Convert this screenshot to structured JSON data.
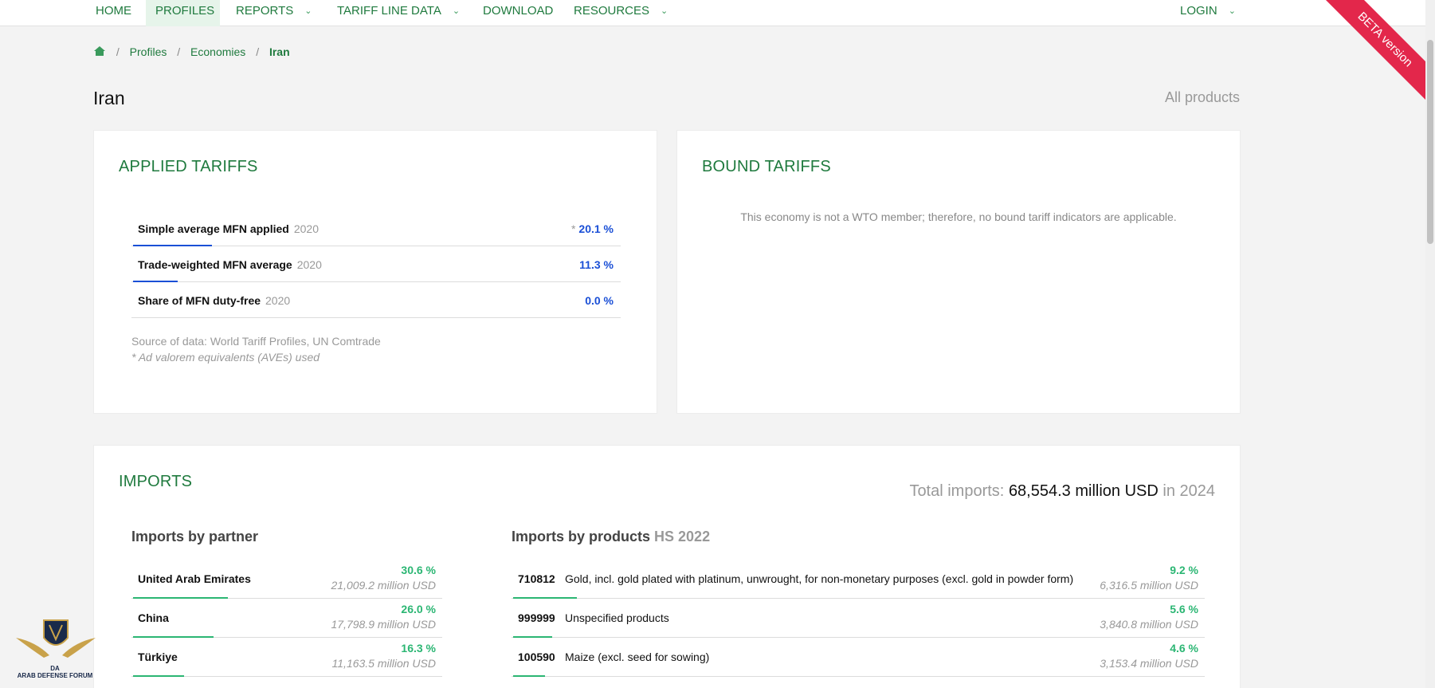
{
  "nav": {
    "home": "HOME",
    "profiles": "PROFILES",
    "reports": "REPORTS",
    "tariff_line_data": "TARIFF LINE DATA",
    "download": "DOWNLOAD",
    "resources": "RESOURCES",
    "login": "LOGIN"
  },
  "ribbon": "BETA version",
  "breadcrumb": {
    "profiles": "Profiles",
    "economies": "Economies",
    "current": "Iran"
  },
  "page_title": "Iran",
  "all_products": "All products",
  "applied": {
    "title": "APPLIED TARIFFS",
    "rows": [
      {
        "label": "Simple average MFN applied",
        "year": "2020",
        "asterisk": "*",
        "value": "20.1 %",
        "bar_fraction": 0.201
      },
      {
        "label": "Trade-weighted MFN average",
        "year": "2020",
        "asterisk": "",
        "value": "11.3 %",
        "bar_fraction": 0.113
      },
      {
        "label": "Share of MFN duty-free",
        "year": "2020",
        "asterisk": "",
        "value": "0.0 %",
        "bar_fraction": 0.0
      }
    ],
    "source": "Source of data: World Tariff Profiles, UN Comtrade",
    "note": "* Ad valorem equivalents (AVEs) used"
  },
  "bound": {
    "title": "BOUND TARIFFS",
    "message": "This economy is not a WTO member; therefore, no bound tariff indicators are applicable."
  },
  "imports": {
    "title": "IMPORTS",
    "total_label": "Total imports:",
    "total_value": "68,554.3 million USD",
    "total_year": "in 2024",
    "by_partner_title": "Imports by partner",
    "by_products_title": "Imports by products",
    "hs_label": "HS 2022",
    "partners": [
      {
        "name": "United Arab Emirates",
        "pct": "30.6 %",
        "usd": "21,009.2 million USD",
        "share": 0.306
      },
      {
        "name": "China",
        "pct": "26.0 %",
        "usd": "17,798.9 million USD",
        "share": 0.26
      },
      {
        "name": "Türkiye",
        "pct": "16.3 %",
        "usd": "11,163.5 million USD",
        "share": 0.163
      }
    ],
    "products": [
      {
        "code": "710812",
        "desc": "Gold, incl. gold plated with platinum, unwrought, for non-monetary purposes (excl. gold in powder form)",
        "pct": "9.2 %",
        "usd": "6,316.5 million USD",
        "share": 0.092
      },
      {
        "code": "999999",
        "desc": "Unspecified products",
        "pct": "5.6 %",
        "usd": "3,840.8 million USD",
        "share": 0.056
      },
      {
        "code": "100590",
        "desc": "Maize (excl. seed for sowing)",
        "pct": "4.6 %",
        "usd": "3,153.4 million USD",
        "share": 0.046
      }
    ]
  },
  "watermark": {
    "text": "ARAB DEFENSE FORUM",
    "monogram": "DA"
  }
}
